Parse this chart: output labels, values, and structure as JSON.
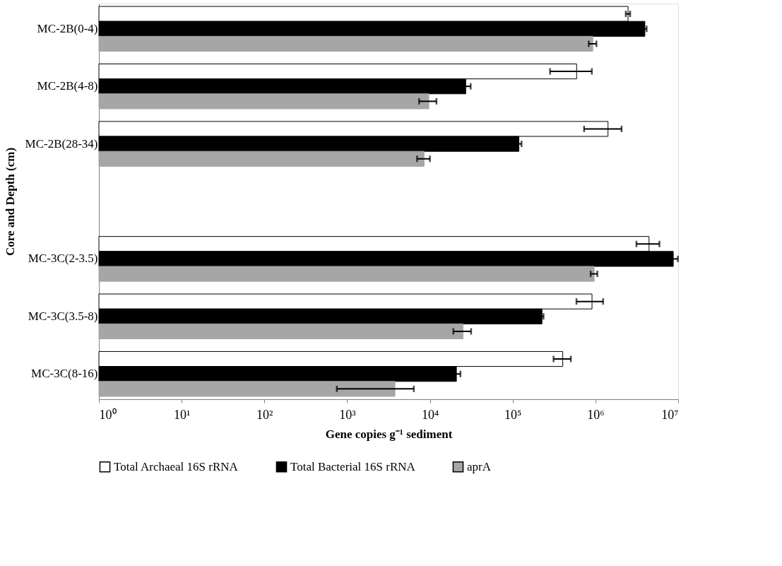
{
  "chart_data": {
    "type": "bar",
    "orientation": "horizontal",
    "log": "x",
    "xlabel": "Gene copies g⁻¹ sediment",
    "ylabel": "Core  and Depth (cm)",
    "categories": [
      "MC-2B(0-4)",
      "MC-2B(4-8)",
      "MC-2B(28-34)",
      null,
      "MC-3C(2-3.5)",
      "MC-3C(3.5-8)",
      "MC-3C(8-16)"
    ],
    "xlim": [
      1,
      10000000
    ],
    "xticks": [
      {
        "value": 1,
        "label": "10⁰"
      },
      {
        "value": 10,
        "label": "10¹"
      },
      {
        "value": 100,
        "label": "10²"
      },
      {
        "value": 1000,
        "label": "10³"
      },
      {
        "value": 10000,
        "label": "10⁴"
      },
      {
        "value": 100000,
        "label": "10⁵"
      },
      {
        "value": 1000000,
        "label": "10⁶"
      },
      {
        "value": 10000000,
        "label": "10⁷"
      }
    ],
    "grid": false,
    "legend": "bottom",
    "series": [
      {
        "name": "Total Archaeal 16S rRNA",
        "color": "#ffffff",
        "values": [
          2480000,
          593000,
          1420000,
          null,
          4450000,
          910000,
          403000
        ],
        "errors": [
          150000,
          [
            283000,
            906000
          ],
          [
            730000,
            2070000
          ],
          null,
          [
            3130000,
            5940000
          ],
          [
            590000,
            1240000
          ],
          [
            312000,
            505000
          ]
        ]
      },
      {
        "name": "Total Bacterial 16S rRNA",
        "color": "#000000",
        "values": [
          3960000,
          27100,
          119000,
          null,
          8730000,
          226000,
          20900
        ],
        "errors": [
          200000,
          4000,
          9000,
          null,
          1200000,
          10000,
          2500
        ]
      },
      {
        "name": "aprA",
        "color": "#a6a6a6",
        "values": [
          930000,
          9700,
          8500,
          null,
          966000,
          25100,
          3780
        ],
        "errors": [
          100000,
          2300,
          1500,
          null,
          90000,
          [
            19200,
            31500
          ],
          [
            750,
            6400
          ]
        ]
      }
    ]
  }
}
